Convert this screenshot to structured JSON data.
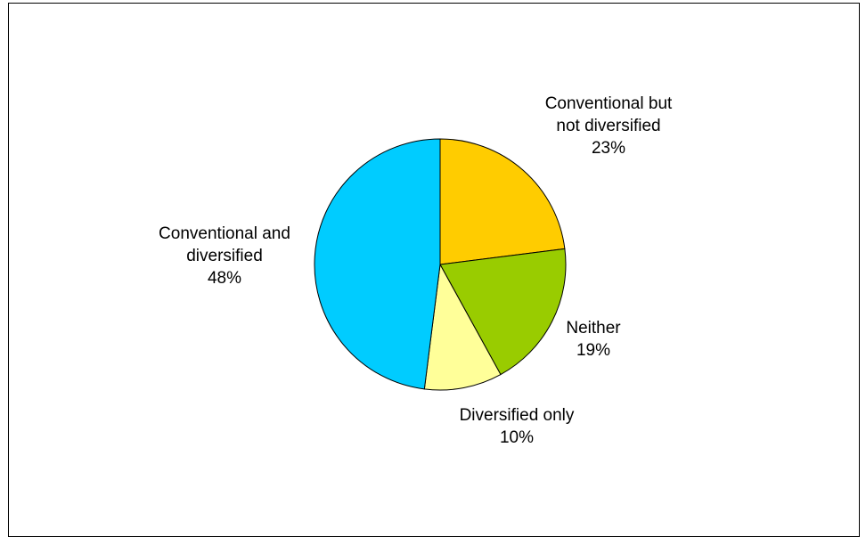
{
  "chart_data": {
    "type": "pie",
    "title": "",
    "slices": [
      {
        "label_lines": [
          "Conventional but",
          "not diversified"
        ],
        "value": 23,
        "value_label": "23%",
        "color": "#FFCC00"
      },
      {
        "label_lines": [
          "Neither"
        ],
        "value": 19,
        "value_label": "19%",
        "color": "#99CC00"
      },
      {
        "label_lines": [
          "Diversified only"
        ],
        "value": 10,
        "value_label": "10%",
        "color": "#FFFF99"
      },
      {
        "label_lines": [
          "Conventional and",
          "diversified"
        ],
        "value": 48,
        "value_label": "48%",
        "color": "#00CCFF"
      }
    ],
    "start_angle": "12 o'clock",
    "direction": "clockwise",
    "legend": "none"
  }
}
